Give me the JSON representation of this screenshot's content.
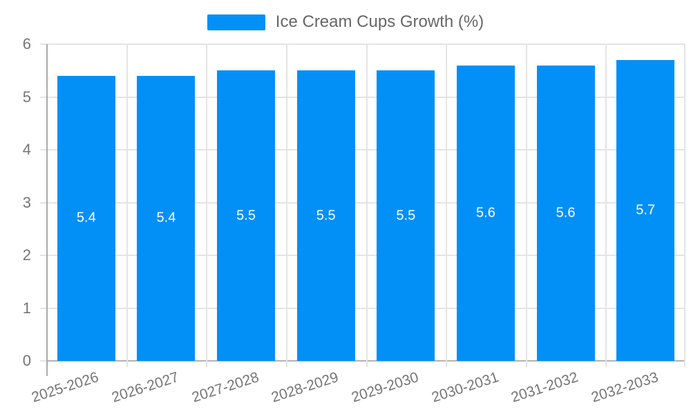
{
  "chart_data": {
    "type": "bar",
    "title": "Ice Cream Cups Growth (%)",
    "legend": {
      "label": "Ice Cream Cups Growth (%)",
      "position": "top-center"
    },
    "categories": [
      "2025-2026",
      "2026-2027",
      "2027-2028",
      "2028-2029",
      "2029-2030",
      "2030-2031",
      "2031-2032",
      "2032-2033"
    ],
    "values": [
      5.4,
      5.4,
      5.5,
      5.5,
      5.5,
      5.6,
      5.6,
      5.7
    ],
    "bar_labels": [
      "5.4",
      "5.4",
      "5.5",
      "5.5",
      "5.5",
      "5.6",
      "5.6",
      "5.7"
    ],
    "y_ticks": [
      0,
      1,
      2,
      3,
      4,
      5,
      6
    ],
    "y_tick_labels": [
      "0",
      "1",
      "2",
      "3",
      "4",
      "5",
      "6"
    ],
    "ylim": [
      0,
      6
    ],
    "xlabel": "",
    "ylabel": "",
    "grid": true,
    "colors": {
      "bar": "#0290f7",
      "bar_label_text": "#ffffff",
      "grid_line": "#e4e4e4",
      "axis_line": "#a9a9a9",
      "baseline": "#b2b2b2",
      "tick_text": "#757575",
      "legend_text": "#666666"
    }
  }
}
